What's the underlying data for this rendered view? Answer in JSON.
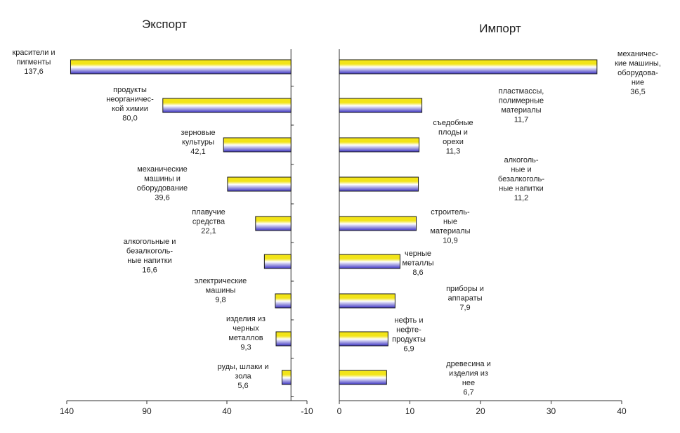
{
  "chart_data": [
    {
      "type": "bar",
      "orientation": "horizontal",
      "title": "Экспорт",
      "xlim": [
        140,
        -10
      ],
      "ticks": [
        "140",
        "90",
        "40",
        "-10"
      ],
      "colors": {
        "bar_top": "#f2e419",
        "bar_mid": "#ffffff",
        "bar_bottom": "#3d35c2",
        "outline": "#1a1a1a"
      },
      "categories": [
        [
          "красители и",
          "пигменты"
        ],
        [
          "продукты",
          "неорганичес-",
          "кой химии"
        ],
        [
          "зерновые",
          "культуры"
        ],
        [
          "механические",
          "машины и",
          "оборудование"
        ],
        [
          "плавучие",
          "средства"
        ],
        [
          "алкогольные и",
          "безалкоголь-",
          "ные напитки"
        ],
        [
          "электрические",
          "машины"
        ],
        [
          "изделия из",
          "черных",
          "металлов"
        ],
        [
          "руды, шлаки и",
          "зола"
        ]
      ],
      "value_labels": [
        "137,6",
        "80,0",
        "42,1",
        "39,6",
        "22,1",
        "16,6",
        "9,8",
        "9,3",
        "5,6"
      ],
      "values": [
        137.6,
        80.0,
        42.1,
        39.6,
        22.1,
        16.6,
        9.8,
        9.3,
        5.6
      ]
    },
    {
      "type": "bar",
      "orientation": "horizontal",
      "title": "Импорт",
      "xlim": [
        0,
        40
      ],
      "ticks": [
        "0",
        "10",
        "20",
        "30",
        "40"
      ],
      "colors": {
        "bar_top": "#f2e419",
        "bar_mid": "#ffffff",
        "bar_bottom": "#3d35c2",
        "outline": "#1a1a1a"
      },
      "categories": [
        [
          "механичес-",
          "кие машины,",
          "оборудова-",
          "ние"
        ],
        [
          "пластмассы,",
          "полимерные",
          "материалы"
        ],
        [
          "съедобные",
          "плоды и",
          "орехи"
        ],
        [
          "алкоголь-",
          "ные и",
          "безалкоголь-",
          "ные напитки"
        ],
        [
          "строитель-",
          "ные",
          "материалы"
        ],
        [
          "черные",
          "металлы"
        ],
        [
          "приборы и",
          "аппараты"
        ],
        [
          "нефть и",
          "нефте-",
          "продукты"
        ],
        [
          "древесина и",
          "изделия из",
          "нее"
        ]
      ],
      "value_labels": [
        "36,5",
        "11,7",
        "11,3",
        "11,2",
        "10,9",
        "8,6",
        "7,9",
        "6,9",
        "6,7"
      ],
      "values": [
        36.5,
        11.7,
        11.3,
        11.2,
        10.9,
        8.6,
        7.9,
        6.9,
        6.7
      ]
    }
  ]
}
